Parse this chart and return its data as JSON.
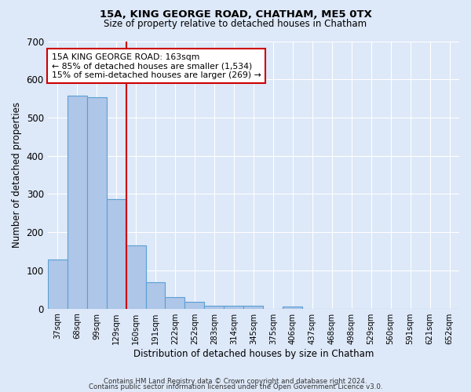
{
  "title": "15A, KING GEORGE ROAD, CHATHAM, ME5 0TX",
  "subtitle": "Size of property relative to detached houses in Chatham",
  "xlabel": "Distribution of detached houses by size in Chatham",
  "ylabel": "Number of detached properties",
  "bar_color": "#aec6e8",
  "bar_edge_color": "#5a9fd4",
  "background_color": "#dde8f8",
  "grid_color": "#ffffff",
  "categories": [
    "37sqm",
    "68sqm",
    "99sqm",
    "129sqm",
    "160sqm",
    "191sqm",
    "222sqm",
    "252sqm",
    "283sqm",
    "314sqm",
    "345sqm",
    "375sqm",
    "406sqm",
    "437sqm",
    "468sqm",
    "498sqm",
    "529sqm",
    "560sqm",
    "591sqm",
    "621sqm",
    "652sqm"
  ],
  "values": [
    128,
    557,
    553,
    287,
    165,
    69,
    31,
    18,
    8,
    8,
    8,
    0,
    6,
    0,
    0,
    0,
    0,
    0,
    0,
    0,
    0
  ],
  "vline_color": "#cc0000",
  "annotation_text": "15A KING GEORGE ROAD: 163sqm\n← 85% of detached houses are smaller (1,534)\n15% of semi-detached houses are larger (269) →",
  "ylim": [
    0,
    700
  ],
  "yticks": [
    0,
    100,
    200,
    300,
    400,
    500,
    600,
    700
  ],
  "footer1": "Contains HM Land Registry data © Crown copyright and database right 2024.",
  "footer2": "Contains public sector information licensed under the Open Government Licence v3.0."
}
